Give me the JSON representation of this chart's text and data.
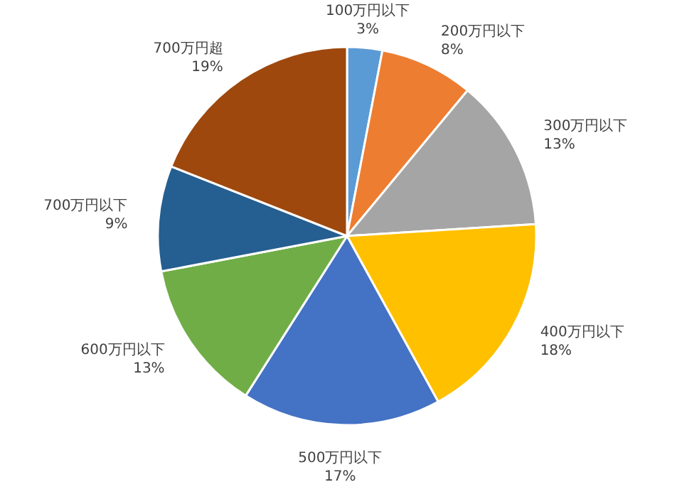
{
  "chart_data": {
    "type": "pie",
    "categories": [
      "100万円以下",
      "200万円以下",
      "300万円以下",
      "400万円以下",
      "500万円以下",
      "600万円以下",
      "700万円以下",
      "700万円超"
    ],
    "values": [
      3,
      8,
      13,
      18,
      17,
      13,
      9,
      19
    ],
    "value_labels": [
      "3%",
      "8%",
      "13%",
      "18%",
      "17%",
      "13%",
      "9%",
      "19%"
    ],
    "colors": [
      "#5b9bd5",
      "#ed7d31",
      "#a5a5a5",
      "#ffc000",
      "#4472c4",
      "#70ad47",
      "#255e91",
      "#9e480e"
    ]
  }
}
